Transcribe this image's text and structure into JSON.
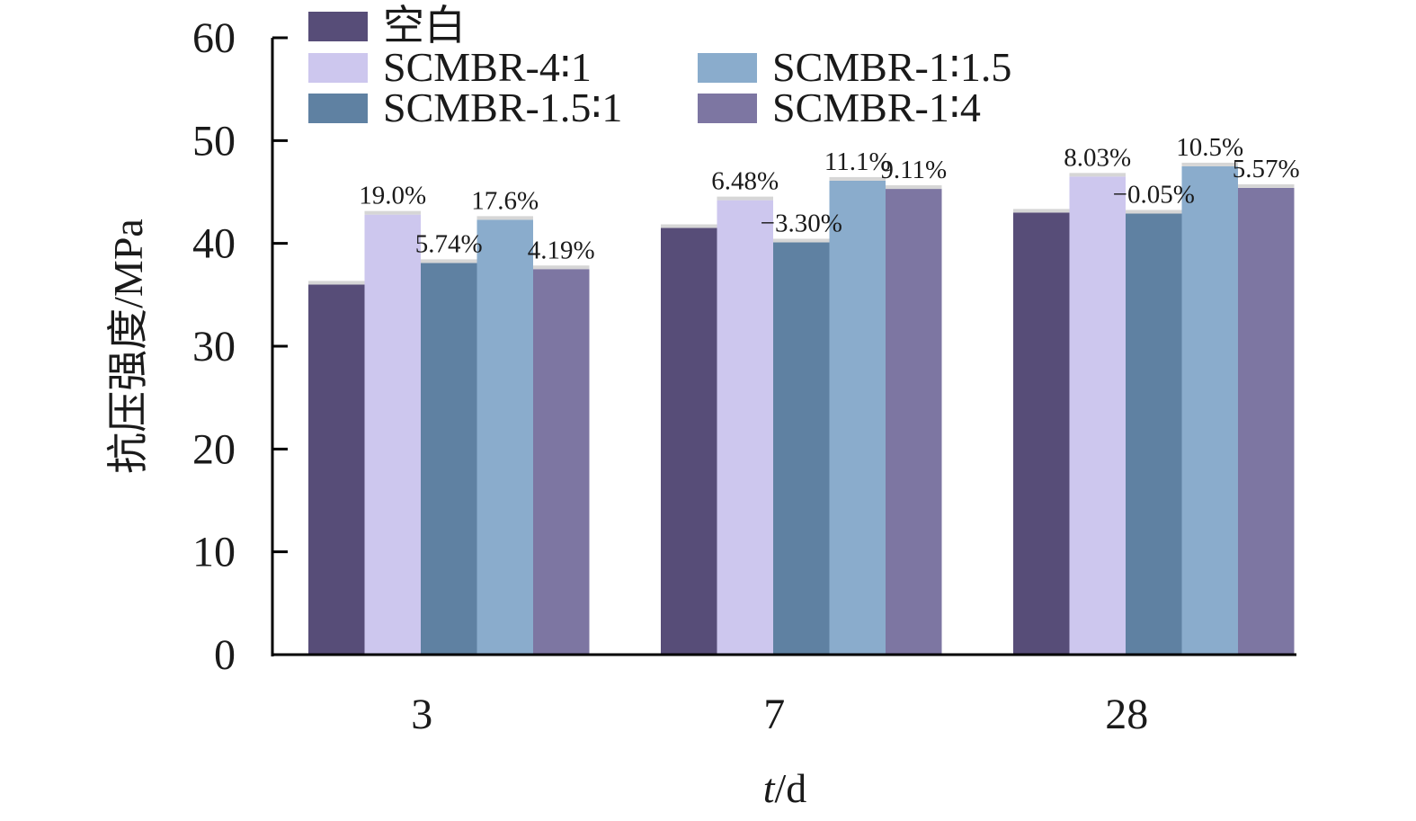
{
  "chart_data": {
    "type": "bar",
    "categories": [
      "3",
      "7",
      "28"
    ],
    "xlabel_italic": "t",
    "xlabel_rest": "/d",
    "ylabel": "抗压强度/MPa",
    "ylim": [
      0,
      60
    ],
    "yticks": [
      "0",
      "10",
      "20",
      "30",
      "40",
      "50",
      "60"
    ],
    "grid": false,
    "legend_position": "top",
    "series": [
      {
        "name": "空白",
        "color": "#574d78",
        "values": [
          36.0,
          41.5,
          43.0
        ],
        "labels": [
          "",
          "",
          ""
        ]
      },
      {
        "name": "SCMBR-4∶1",
        "color": "#cdc7ee",
        "values": [
          42.8,
          44.2,
          46.5
        ],
        "labels": [
          "19.0%",
          "6.48%",
          "8.03%"
        ]
      },
      {
        "name": "SCMBR-1.5∶1",
        "color": "#5f81a2",
        "values": [
          38.1,
          40.1,
          42.9
        ],
        "labels": [
          "5.74%",
          "−3.30%",
          "−0.05%"
        ]
      },
      {
        "name": "SCMBR-1∶1.5",
        "color": "#8aaccc",
        "values": [
          42.3,
          46.1,
          47.5
        ],
        "labels": [
          "17.6%",
          "11.1%",
          "10.5%"
        ]
      },
      {
        "name": "SCMBR-1∶4",
        "color": "#7d76a2",
        "values": [
          37.5,
          45.3,
          45.4
        ],
        "labels": [
          "4.19%",
          "9.11%",
          "5.57%"
        ]
      }
    ]
  }
}
